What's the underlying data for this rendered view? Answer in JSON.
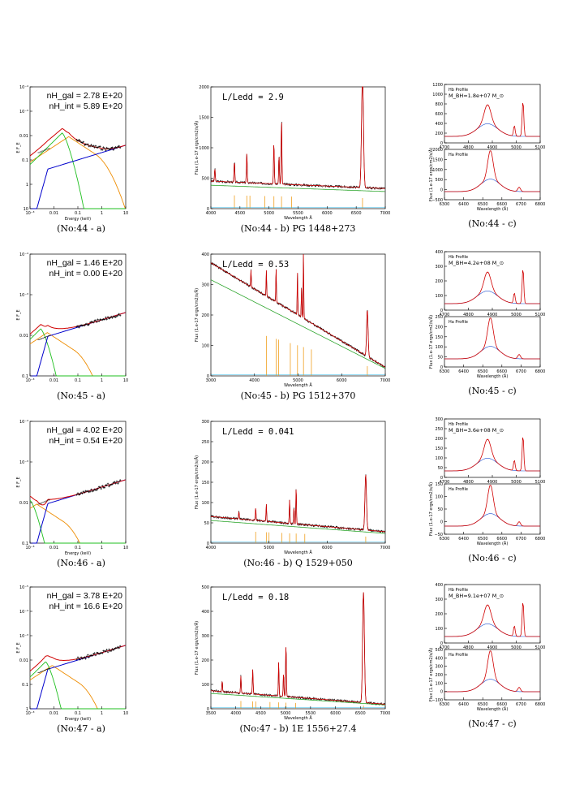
{
  "colors": {
    "data": "#000000",
    "total": "#d00000",
    "disk": "#1fbf1f",
    "comptonization": "#ee8c00",
    "powerlaw": "#0000cc",
    "continuum": "#2ca52c",
    "fe_template": "#f0a020",
    "balmer": "#3a6ed8",
    "residual": "#30b8e8",
    "line_fit": "#2050d0"
  },
  "rows": [
    {
      "xray": {
        "caption": "(No:44 - a)",
        "nh_gal": "nH_gal = 2.78 E+20",
        "nh_int": "nH_int = 5.89 E+20",
        "ylabel": "E F_E",
        "xlabel": "Energy (keV)",
        "x_ticks": [
          "10⁻³",
          "0.01",
          "0.1",
          "1",
          "10"
        ],
        "y_ticks": [
          "10",
          "1",
          "0.1",
          "0.01",
          "10⁻³",
          "10⁻⁴"
        ],
        "total_peak_x": 0.055,
        "total_peak_y": 0.18,
        "soft_data_low": 0.02
      },
      "optical": {
        "caption": "(No:44 - b) PG 1448+273",
        "ratio": "L/Ledd  =  2.9",
        "ylabel": "Flux (1.e-17 ergs/cm2/s/Å)",
        "xlabel": "Wavelength Å",
        "x_ticks": [
          "4000",
          "4500",
          "5000",
          "5500",
          "6000",
          "6500",
          "7000"
        ],
        "y_ticks": [
          "0",
          "500",
          "1000",
          "1500",
          "2000"
        ],
        "xlim": [
          3650,
          7000
        ],
        "ylim": [
          0,
          2300
        ],
        "cont_start": 520,
        "cont_end": 380,
        "ha_peak": 2250
      },
      "profile": {
        "caption": "(No:44 - c)",
        "hb_label": "Hb Profile",
        "mass": "M_BH=1.8e+07 M_⊙",
        "ha_label": "Ha Profile",
        "ylabel": "Flux (1.e-17 ergs/cm2/s/Å)",
        "xlabel": "Wavelength (Å)",
        "hb_x_ticks": [
          "4700",
          "4800",
          "4900",
          "5000",
          "5100"
        ],
        "hb_y_ticks": [
          "0",
          "200",
          "400",
          "600",
          "800",
          "1000",
          "1200"
        ],
        "ha_x_ticks": [
          "6300",
          "6400",
          "6500",
          "6600",
          "6700",
          "6800"
        ],
        "ha_y_ticks": [
          "−500",
          "0",
          "500",
          "1000",
          "1500",
          "2000"
        ]
      }
    },
    {
      "xray": {
        "caption": "(No:45 - a)",
        "nh_gal": "nH_gal = 1.46 E+20",
        "nh_int": "nH_int = 0.00 E+20",
        "ylabel": "E F_E",
        "xlabel": "",
        "x_ticks": [
          "10⁻³",
          "0.01",
          "0.1",
          "1",
          "10"
        ],
        "y_ticks": [
          "0.1",
          "0.01",
          "10⁻³",
          "10⁻⁴"
        ],
        "total_peak_x": 0.006,
        "total_peak_y": 0.012,
        "soft_data_low": 0.003
      },
      "optical": {
        "caption": "(No:45 - b) PG 1512+370",
        "ratio": "L/Ledd  =  0.53",
        "ylabel": "Flux (1.e-17 ergs/cm2/s/Å)",
        "xlabel": "Wavelength Å",
        "x_ticks": [
          "3000",
          "4000",
          "5000",
          "6000",
          "7000"
        ],
        "y_ticks": [
          "0",
          "100",
          "200",
          "300",
          "400"
        ],
        "xlim": [
          2750,
          7000
        ],
        "ylim": [
          0,
          420
        ],
        "cont_start": 390,
        "cont_end": 30,
        "ha_peak": 160
      },
      "profile": {
        "caption": "(No:45 - c)",
        "hb_label": "Hb Profile",
        "mass": "M_BH=4.2e+08 M_⊙",
        "ha_label": "Ha Profile",
        "ylabel": "Flux (1.e-17 ergs/cm2/s/Å)",
        "xlabel": "Wavelength (Å)",
        "hb_x_ticks": [
          "4700",
          "4800",
          "4900",
          "5000",
          "5100"
        ],
        "hb_y_ticks": [
          "0",
          "100",
          "200",
          "300",
          "400"
        ],
        "ha_x_ticks": [
          "6300",
          "6400",
          "6500",
          "6600",
          "6700",
          "6800"
        ],
        "ha_y_ticks": [
          "0",
          "50",
          "100",
          "150",
          "200",
          "250"
        ]
      }
    },
    {
      "xray": {
        "caption": "(No:46 - a)",
        "nh_gal": "nH_gal = 4.02 E+20",
        "nh_int": "nH_int = 0.54 E+20",
        "ylabel": "E F_E",
        "xlabel": "Energy (keV)",
        "x_ticks": [
          "10⁻³",
          "0.01",
          "0.1",
          "1",
          "10"
        ],
        "y_ticks": [
          "0.1",
          "0.01",
          "10⁻³",
          "10⁻⁴"
        ],
        "total_peak_x": 0.002,
        "total_peak_y": 0.008,
        "soft_data_low": 0.004
      },
      "optical": {
        "caption": "(No:46 - b) Q 1529+050",
        "ratio": "L/Ledd  =  0.041",
        "ylabel": "Flux (1.e-17 ergs/cm2/s/Å)",
        "xlabel": "Wavelength Å",
        "x_ticks": [
          "4000",
          "5000",
          "6000",
          "7000"
        ],
        "y_ticks": [
          "0",
          "50",
          "100",
          "150",
          "200",
          "250",
          "300"
        ],
        "xlim": [
          3100,
          7000
        ],
        "ylim": [
          0,
          320
        ],
        "cont_start": 70,
        "cont_end": 30,
        "ha_peak": 145
      },
      "profile": {
        "caption": "(No:46 - c)",
        "hb_label": "Hb Profile",
        "mass": "M_BH=3.6e+08 M_⊙",
        "ha_label": "Ha Profile",
        "ylabel": "Flux (1.e-17 ergs/cm2/s/Å)",
        "xlabel": "Wavelength (Å)",
        "hb_x_ticks": [
          "4700",
          "4800",
          "4900",
          "5000",
          "5100"
        ],
        "hb_y_ticks": [
          "0",
          "50",
          "100",
          "150",
          "200",
          "250",
          "300"
        ],
        "ha_x_ticks": [
          "6300",
          "6400",
          "6500",
          "6600",
          "6700",
          "6800"
        ],
        "ha_y_ticks": [
          "−50",
          "0",
          "50",
          "100",
          "150"
        ]
      }
    },
    {
      "xray": {
        "caption": "(No:47 - a)",
        "nh_gal": "nH_gal = 3.78 E+20",
        "nh_int": "nH_int = 16.6 E+20",
        "ylabel": "E F_E",
        "xlabel": "Energy (keV)",
        "x_ticks": [
          "10⁻³",
          "0.01",
          "0.1",
          "1",
          "10"
        ],
        "y_ticks": [
          "1",
          "0.1",
          "0.01",
          "10⁻³",
          "10⁻⁴",
          "10⁻⁵"
        ],
        "total_peak_x": 0.01,
        "total_peak_y": 0.012,
        "soft_data_low": 0.003
      },
      "optical": {
        "caption": "(No:47 - b) 1E 1556+27.4",
        "ratio": "L/Ledd  =  0.18",
        "ylabel": "Flux (1.e-17 ergs/cm2/s/Å)",
        "xlabel": "Wavelength Å",
        "x_ticks": [
          "3500",
          "4000",
          "4500",
          "5000",
          "5500",
          "6000",
          "6500",
          "7000"
        ],
        "y_ticks": [
          "0",
          "100",
          "200",
          "300",
          "400",
          "500"
        ],
        "xlim": [
          3500,
          7000
        ],
        "ylim": [
          0,
          540
        ],
        "cont_start": 80,
        "cont_end": 20,
        "ha_peak": 490
      },
      "profile": {
        "caption": "(No:47 - c)",
        "hb_label": "Hb Profile",
        "mass": "M_BH=9.1e+07 M_⊙",
        "ha_label": "Ha Profile",
        "ylabel": "Flux (1.e-17 ergs/cm2/s/Å)",
        "xlabel": "Wavelength (Å)",
        "hb_x_ticks": [
          "4700",
          "4800",
          "4900",
          "5000",
          "5100"
        ],
        "hb_y_ticks": [
          "0",
          "100",
          "200",
          "300",
          "400"
        ],
        "ha_x_ticks": [
          "6300",
          "6400",
          "6500",
          "6600",
          "6700",
          "6800"
        ],
        "ha_y_ticks": [
          "−100",
          "0",
          "100",
          "200",
          "300",
          "400",
          "500"
        ]
      }
    }
  ]
}
